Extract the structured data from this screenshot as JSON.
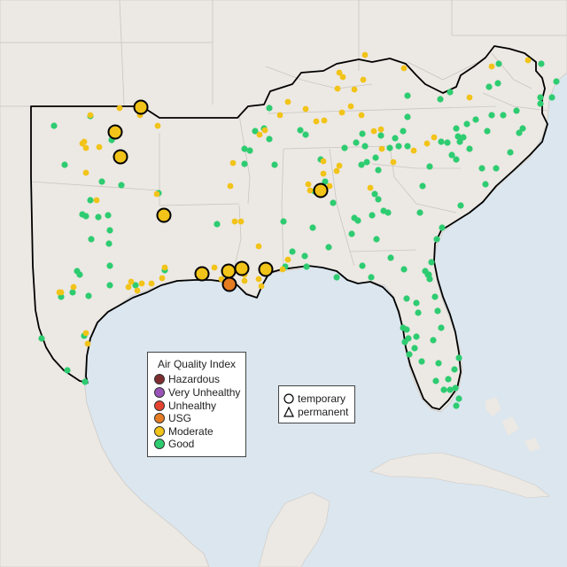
{
  "legend": {
    "title": "Air Quality Index",
    "categories": [
      {
        "label": "Hazardous",
        "color": "#7e2d2f"
      },
      {
        "label": "Very Unhealthy",
        "color": "#9a53b6"
      },
      {
        "label": "Unhealthy",
        "color": "#e4432f"
      },
      {
        "label": "USG",
        "color": "#e67c22"
      },
      {
        "label": "Moderate",
        "color": "#f2c318"
      },
      {
        "label": "Good",
        "color": "#2ecc71"
      }
    ]
  },
  "monitor_types": [
    {
      "label": "temporary",
      "shape": "circle"
    },
    {
      "label": "permanent",
      "shape": "triangle"
    }
  ],
  "colors": {
    "water": "#dbe6ef",
    "land": "#ece8e3",
    "state_border": "#c9c5c0",
    "region_outline": "#000000"
  }
}
